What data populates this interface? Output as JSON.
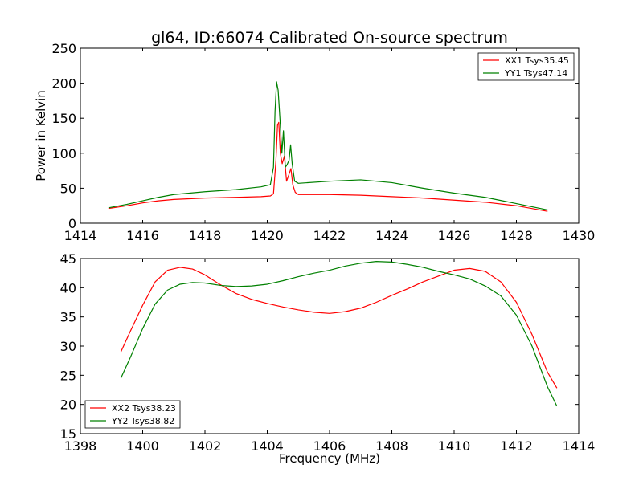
{
  "chart_data": [
    {
      "type": "line",
      "title": "gl64, ID:66074 Calibrated On-source spectrum",
      "xlabel": "",
      "ylabel": "Power in Kelvin",
      "xlim": [
        1414,
        1430
      ],
      "ylim": [
        0,
        250
      ],
      "xticks": [
        1414,
        1416,
        1418,
        1420,
        1422,
        1424,
        1426,
        1428,
        1430
      ],
      "yticks": [
        0,
        50,
        100,
        150,
        200,
        250
      ],
      "grid": false,
      "legend_position": "top-right",
      "series": [
        {
          "name": "XX1 Tsys35.45",
          "color": "#ff0000",
          "points": [
            [
              1414.9,
              21
            ],
            [
              1415.5,
              25
            ],
            [
              1416,
              29
            ],
            [
              1416.5,
              32
            ],
            [
              1417,
              34
            ],
            [
              1418,
              36
            ],
            [
              1419,
              37
            ],
            [
              1419.8,
              38
            ],
            [
              1420.1,
              39
            ],
            [
              1420.2,
              42
            ],
            [
              1420.28,
              90
            ],
            [
              1420.33,
              140
            ],
            [
              1420.37,
              144
            ],
            [
              1420.42,
              100
            ],
            [
              1420.48,
              85
            ],
            [
              1420.55,
              96
            ],
            [
              1420.62,
              60
            ],
            [
              1420.7,
              70
            ],
            [
              1420.76,
              78
            ],
            [
              1420.82,
              55
            ],
            [
              1420.9,
              44
            ],
            [
              1421,
              41
            ],
            [
              1422,
              41
            ],
            [
              1423,
              40
            ],
            [
              1424,
              38
            ],
            [
              1425,
              36
            ],
            [
              1426,
              33
            ],
            [
              1427,
              30
            ],
            [
              1428,
              25
            ],
            [
              1429,
              17
            ]
          ]
        },
        {
          "name": "YY1 Tsys47.14",
          "color": "#008000",
          "points": [
            [
              1414.9,
              22
            ],
            [
              1415.5,
              27
            ],
            [
              1416,
              32
            ],
            [
              1416.5,
              37
            ],
            [
              1417,
              41
            ],
            [
              1418,
              45
            ],
            [
              1419,
              48
            ],
            [
              1419.8,
              52
            ],
            [
              1420.1,
              55
            ],
            [
              1420.2,
              80
            ],
            [
              1420.25,
              160
            ],
            [
              1420.3,
              202
            ],
            [
              1420.35,
              190
            ],
            [
              1420.42,
              140
            ],
            [
              1420.47,
              100
            ],
            [
              1420.52,
              132
            ],
            [
              1420.58,
              80
            ],
            [
              1420.63,
              83
            ],
            [
              1420.7,
              90
            ],
            [
              1420.75,
              112
            ],
            [
              1420.8,
              85
            ],
            [
              1420.88,
              60
            ],
            [
              1421,
              57
            ],
            [
              1422,
              60
            ],
            [
              1423,
              62
            ],
            [
              1424,
              58
            ],
            [
              1425,
              50
            ],
            [
              1426,
              43
            ],
            [
              1427,
              37
            ],
            [
              1428,
              28
            ],
            [
              1429,
              19
            ]
          ]
        }
      ]
    },
    {
      "type": "line",
      "title": "",
      "xlabel": "Frequency (MHz)",
      "ylabel": "",
      "xlim": [
        1398,
        1414
      ],
      "ylim": [
        15,
        45
      ],
      "xticks": [
        1398,
        1400,
        1402,
        1404,
        1406,
        1408,
        1410,
        1412,
        1414
      ],
      "yticks": [
        15,
        20,
        25,
        30,
        35,
        40,
        45
      ],
      "grid": false,
      "legend_position": "bottom-left",
      "series": [
        {
          "name": "XX2 Tsys38.23",
          "color": "#ff0000",
          "points": [
            [
              1399.3,
              29
            ],
            [
              1399.6,
              32.5
            ],
            [
              1400,
              37
            ],
            [
              1400.4,
              41
            ],
            [
              1400.8,
              43
            ],
            [
              1401.2,
              43.5
            ],
            [
              1401.6,
              43.2
            ],
            [
              1402,
              42.2
            ],
            [
              1402.5,
              40.5
            ],
            [
              1403,
              39
            ],
            [
              1403.5,
              38
            ],
            [
              1404,
              37.3
            ],
            [
              1404.5,
              36.7
            ],
            [
              1405,
              36.2
            ],
            [
              1405.5,
              35.8
            ],
            [
              1406,
              35.6
            ],
            [
              1406.5,
              35.9
            ],
            [
              1407,
              36.5
            ],
            [
              1407.5,
              37.5
            ],
            [
              1408,
              38.7
            ],
            [
              1408.5,
              39.8
            ],
            [
              1409,
              41
            ],
            [
              1409.5,
              42
            ],
            [
              1410,
              43
            ],
            [
              1410.5,
              43.3
            ],
            [
              1411,
              42.8
            ],
            [
              1411.5,
              41
            ],
            [
              1412,
              37.5
            ],
            [
              1412.5,
              32
            ],
            [
              1413,
              25.5
            ],
            [
              1413.3,
              22.8
            ]
          ]
        },
        {
          "name": "YY2 Tsys38.82",
          "color": "#008000",
          "points": [
            [
              1399.3,
              24.5
            ],
            [
              1399.6,
              28
            ],
            [
              1400,
              33
            ],
            [
              1400.4,
              37.2
            ],
            [
              1400.8,
              39.6
            ],
            [
              1401.2,
              40.6
            ],
            [
              1401.6,
              40.9
            ],
            [
              1402,
              40.8
            ],
            [
              1402.5,
              40.4
            ],
            [
              1403,
              40.2
            ],
            [
              1403.5,
              40.3
            ],
            [
              1404,
              40.6
            ],
            [
              1404.5,
              41.2
            ],
            [
              1405,
              41.9
            ],
            [
              1405.5,
              42.5
            ],
            [
              1406,
              43
            ],
            [
              1406.5,
              43.7
            ],
            [
              1407,
              44.2
            ],
            [
              1407.5,
              44.5
            ],
            [
              1408,
              44.4
            ],
            [
              1408.5,
              44
            ],
            [
              1409,
              43.5
            ],
            [
              1409.5,
              42.8
            ],
            [
              1410,
              42.2
            ],
            [
              1410.5,
              41.5
            ],
            [
              1411,
              40.3
            ],
            [
              1411.5,
              38.6
            ],
            [
              1412,
              35.3
            ],
            [
              1412.5,
              30
            ],
            [
              1413,
              23
            ],
            [
              1413.3,
              19.7
            ]
          ]
        }
      ]
    }
  ]
}
